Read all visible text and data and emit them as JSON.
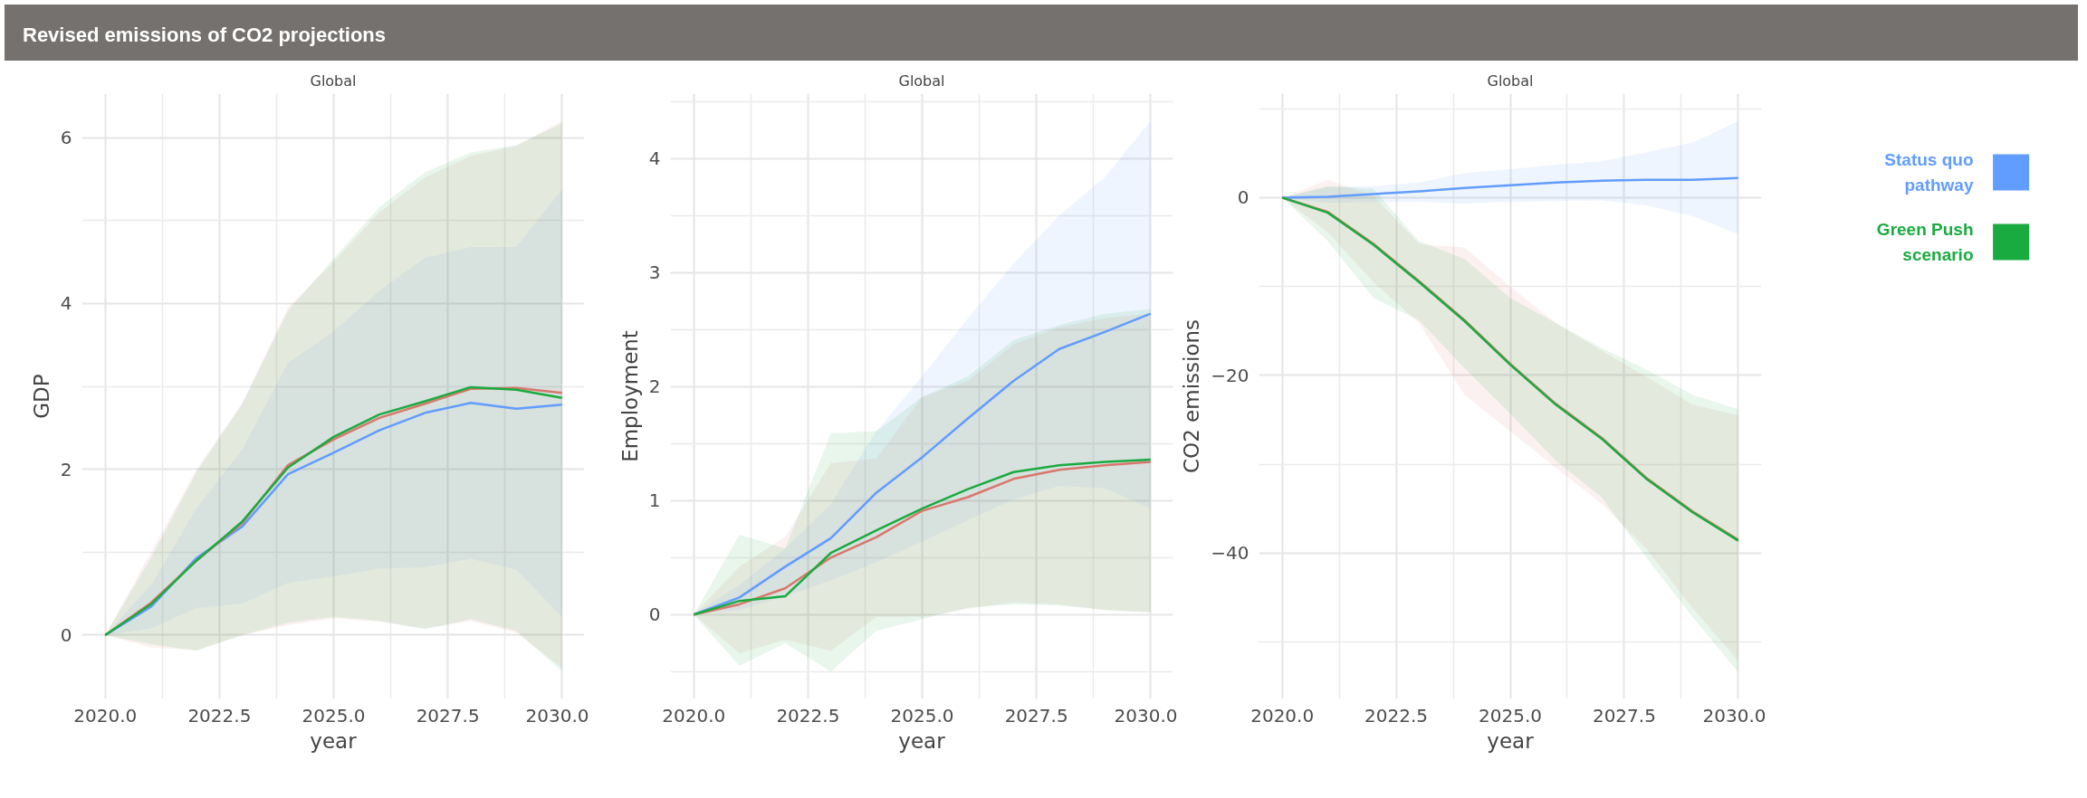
{
  "chart_data": [
    {
      "type": "other",
      "title": "Revised emissions of CO2 projections"
    },
    {
      "type": "line",
      "title": "Global",
      "xlabel": "year",
      "ylabel": "GDP",
      "grid": true,
      "xlim": [
        2019.49,
        2030.49
      ],
      "ylim": [
        -0.77,
        6.53
      ],
      "xticks": [
        {
          "value": 2020,
          "label": "2020.0"
        },
        {
          "value": 2022.5,
          "label": "2022.5"
        },
        {
          "value": 2025,
          "label": "2025.0"
        },
        {
          "value": 2027.5,
          "label": "2027.5"
        },
        {
          "value": 2030,
          "label": "2030.0"
        }
      ],
      "yticks": [
        0,
        2,
        4,
        6
      ],
      "x": [
        2020,
        2021,
        2022,
        2023,
        2024,
        2025,
        2026,
        2027,
        2028,
        2029,
        2030
      ],
      "series": [
        {
          "color": "#619cff",
          "values": [
            0,
            0.34,
            0.93,
            1.31,
            1.94,
            2.2,
            2.47,
            2.68,
            2.8,
            2.73,
            2.78
          ],
          "lower": [
            0,
            0.08,
            0.33,
            0.38,
            0.63,
            0.71,
            0.8,
            0.82,
            0.92,
            0.79,
            0.22
          ],
          "upper": [
            0,
            0.6,
            1.53,
            2.24,
            3.28,
            3.66,
            4.15,
            4.55,
            4.68,
            4.68,
            5.38
          ]
        },
        {
          "color": "#d9776c",
          "values": [
            0,
            0.39,
            0.9,
            1.35,
            2.05,
            2.36,
            2.62,
            2.79,
            2.97,
            2.98,
            2.92
          ],
          "lower": [
            0,
            -0.15,
            -0.18,
            0,
            0.12,
            0.2,
            0.16,
            0.08,
            0.17,
            0.03,
            -0.4
          ],
          "upper": [
            0,
            1.0,
            2.0,
            2.8,
            3.95,
            4.5,
            5.1,
            5.52,
            5.78,
            5.9,
            6.2
          ]
        },
        {
          "color": "#1aab40",
          "values": [
            0,
            0.37,
            0.9,
            1.37,
            2.02,
            2.39,
            2.66,
            2.82,
            2.99,
            2.96,
            2.86
          ],
          "lower": [
            0,
            -0.11,
            -0.19,
            0,
            0.15,
            0.22,
            0.17,
            0.07,
            0.19,
            0.05,
            -0.44
          ],
          "upper": [
            0,
            0.93,
            1.97,
            2.79,
            3.91,
            4.54,
            5.16,
            5.58,
            5.82,
            5.91,
            6.17
          ]
        }
      ]
    },
    {
      "type": "line",
      "title": "Global",
      "xlabel": "year",
      "ylabel": "Employment",
      "grid": true,
      "xlim": [
        2019.49,
        2030.49
      ],
      "ylim": [
        -0.74,
        4.57
      ],
      "xticks": [
        {
          "value": 2020,
          "label": "2020.0"
        },
        {
          "value": 2022.5,
          "label": "2022.5"
        },
        {
          "value": 2025,
          "label": "2025.0"
        },
        {
          "value": 2027.5,
          "label": "2027.5"
        },
        {
          "value": 2030,
          "label": "2030.0"
        }
      ],
      "yticks": [
        0,
        1,
        2,
        3,
        4
      ],
      "x": [
        2020,
        2021,
        2022,
        2023,
        2024,
        2025,
        2026,
        2027,
        2028,
        2029,
        2030
      ],
      "series": [
        {
          "color": "#619cff",
          "values": [
            0,
            0.15,
            0.42,
            0.67,
            1.07,
            1.38,
            1.72,
            2.05,
            2.33,
            2.48,
            2.64
          ],
          "lower": [
            0,
            0.04,
            0.16,
            0.3,
            0.46,
            0.64,
            0.83,
            1.01,
            1.13,
            1.11,
            0.93
          ],
          "upper": [
            0,
            0.26,
            0.58,
            0.97,
            1.61,
            2.09,
            2.6,
            3.08,
            3.5,
            3.84,
            4.33
          ]
        },
        {
          "color": "#d9776c",
          "values": [
            0,
            0.09,
            0.23,
            0.5,
            0.68,
            0.91,
            1.03,
            1.19,
            1.27,
            1.31,
            1.34
          ],
          "lower": [
            0,
            -0.34,
            -0.22,
            -0.32,
            -0.02,
            -0.02,
            0.05,
            0.11,
            0.09,
            0.04,
            0.02
          ],
          "upper": [
            0,
            0.42,
            0.68,
            1.33,
            1.37,
            1.91,
            2.05,
            2.37,
            2.52,
            2.6,
            2.64
          ]
        },
        {
          "color": "#1aab40",
          "values": [
            0,
            0.12,
            0.16,
            0.54,
            0.74,
            0.93,
            1.1,
            1.25,
            1.31,
            1.34,
            1.36
          ],
          "lower": [
            0,
            -0.45,
            -0.25,
            -0.5,
            -0.14,
            -0.04,
            0.06,
            0.09,
            0.08,
            0.04,
            0.02
          ],
          "upper": [
            0,
            0.7,
            0.58,
            1.59,
            1.61,
            1.91,
            2.09,
            2.41,
            2.54,
            2.64,
            2.68
          ]
        }
      ]
    },
    {
      "type": "line",
      "title": "Global",
      "xlabel": "year",
      "ylabel": "CO2 emissions",
      "grid": true,
      "legend": "right",
      "xlim": [
        2019.49,
        2030.51
      ],
      "ylim": [
        -56.4,
        11.7
      ],
      "xticks": [
        {
          "value": 2020,
          "label": "2020.0"
        },
        {
          "value": 2022.5,
          "label": "2022.5"
        },
        {
          "value": 2025,
          "label": "2025.0"
        },
        {
          "value": 2027.5,
          "label": "2027.5"
        },
        {
          "value": 2030,
          "label": "2030.0"
        }
      ],
      "yticks": [
        -40,
        -20,
        0
      ],
      "x": [
        2020,
        2021,
        2022,
        2023,
        2024,
        2025,
        2026,
        2027,
        2028,
        2029,
        2030
      ],
      "series": [
        {
          "name": "Status quo pathway",
          "color": "#619cff",
          "values": [
            0,
            0.1,
            0.4,
            0.7,
            1.1,
            1.4,
            1.7,
            1.9,
            2.0,
            2.0,
            2.2
          ],
          "lower": [
            0,
            -0.6,
            -0.5,
            -0.5,
            -0.7,
            -0.5,
            -0.4,
            -0.3,
            -0.9,
            -2.1,
            -4.1
          ],
          "upper": [
            0,
            1.2,
            1.3,
            1.7,
            2.8,
            3.2,
            3.7,
            4.1,
            5.1,
            6.2,
            8.6
          ]
        },
        {
          "color": "#d9776c",
          "values": [
            0,
            -1.6,
            -5.2,
            -9.4,
            -13.8,
            -18.7,
            -23.2,
            -27.0,
            -31.6,
            -35.3,
            -38.5
          ],
          "lower": [
            0,
            -3.9,
            -9.5,
            -14.1,
            -22.2,
            -26.3,
            -30.4,
            -34.4,
            -39.6,
            -46.2,
            -52.1
          ],
          "upper": [
            0,
            2.0,
            0.2,
            -5.2,
            -5.6,
            -10.0,
            -14.1,
            -17.2,
            -20.2,
            -23.3,
            -24.5
          ]
        },
        {
          "name": "Green Push scenario",
          "color": "#1aab40",
          "values": [
            0,
            -1.7,
            -5.3,
            -9.5,
            -13.9,
            -18.8,
            -23.3,
            -27.1,
            -31.7,
            -35.4,
            -38.6
          ],
          "lower": [
            0,
            -4.9,
            -11.3,
            -13.8,
            -19.2,
            -24.3,
            -29.6,
            -33.7,
            -40.6,
            -47.2,
            -53.4
          ],
          "upper": [
            0,
            1.3,
            1.0,
            -4.9,
            -6.9,
            -11.3,
            -14.1,
            -16.9,
            -19.4,
            -22.2,
            -23.8
          ]
        }
      ]
    }
  ]
}
